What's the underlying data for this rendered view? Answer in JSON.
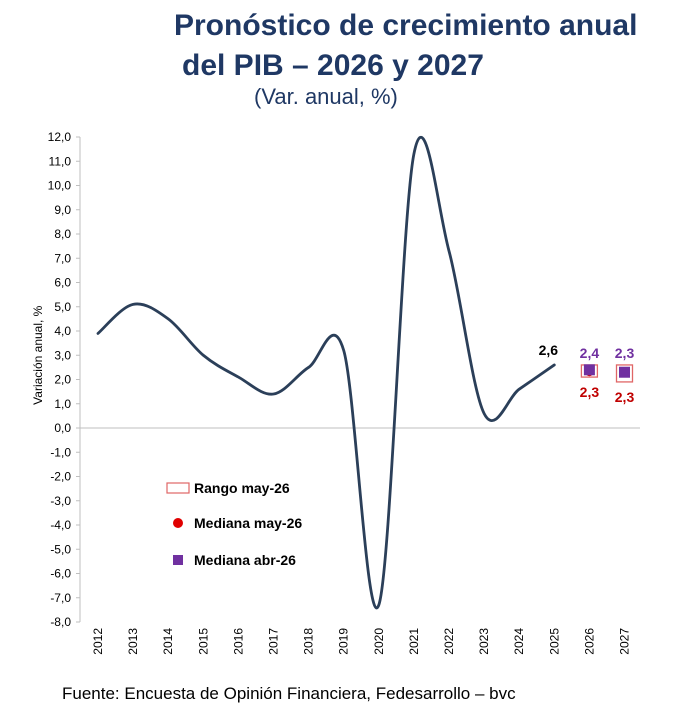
{
  "title_line1": "Pronóstico de crecimiento anual",
  "title_line2": "del PIB – 2026 y 2027",
  "subtitle": "(Var. anual, %)",
  "source": "Fuente: Encuesta de Opinión Financiera, Fedesarrollo – bvc",
  "colors": {
    "title": "#1f3864",
    "line": "#2b3f59",
    "range": "#e06666",
    "median_may": "#e00000",
    "median_abr": "#7030a0",
    "label_may": "#c00000",
    "label_abr": "#7030a0"
  },
  "chart_data": {
    "type": "line",
    "ylabel": "Variación anual, %",
    "xlabel": "",
    "ylim": [
      -8.0,
      12.0
    ],
    "yticks": [
      "12,0",
      "11,0",
      "10,0",
      "9,0",
      "8,0",
      "7,0",
      "6,0",
      "5,0",
      "4,0",
      "3,0",
      "2,0",
      "1,0",
      "0,0",
      "-1,0",
      "-2,0",
      "-3,0",
      "-4,0",
      "-5,0",
      "-6,0",
      "-7,0",
      "-8,0"
    ],
    "categories": [
      "2012",
      "2013",
      "2014",
      "2015",
      "2016",
      "2017",
      "2018",
      "2019",
      "2020",
      "2021",
      "2022",
      "2023",
      "2024",
      "2025",
      "2026",
      "2027"
    ],
    "series": [
      {
        "values": [
          3.9,
          5.1,
          4.5,
          3.0,
          2.1,
          1.4,
          2.5,
          3.2,
          -7.3,
          11.3,
          7.3,
          0.6,
          1.6,
          2.6,
          null,
          null
        ]
      }
    ],
    "last_value_label": "2,6",
    "forecasts": [
      {
        "year": "2026",
        "range_low": 2.1,
        "range_high": 2.6,
        "median_may": 2.3,
        "median_abr": 2.4,
        "label_may": "2,3",
        "label_abr": "2,4"
      },
      {
        "year": "2027",
        "range_low": 1.9,
        "range_high": 2.6,
        "median_may": 2.3,
        "median_abr": 2.3,
        "label_may": "2,3",
        "label_abr": "2,3"
      }
    ],
    "legend": {
      "placement": "bottom-left",
      "items": [
        {
          "key": "range",
          "label": "Rango may-26"
        },
        {
          "key": "median_may",
          "label": "Mediana may-26"
        },
        {
          "key": "median_abr",
          "label": "Mediana abr-26"
        }
      ]
    },
    "grid": false
  }
}
